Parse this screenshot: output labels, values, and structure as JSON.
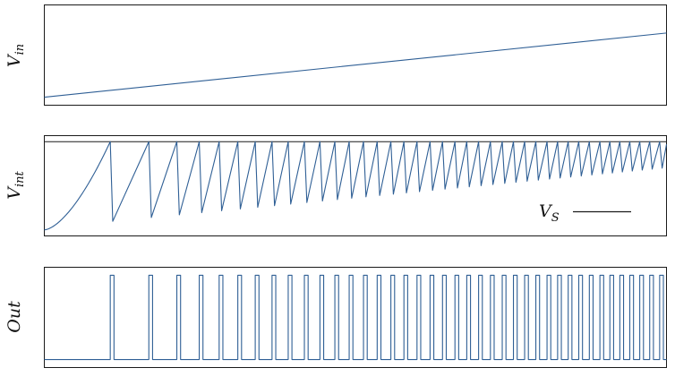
{
  "figure": {
    "colors": {
      "trace": "#2f5f95",
      "frame": "#1a1a1a",
      "reference": "#1a1a1a"
    }
  },
  "chart_data": [
    {
      "type": "line",
      "panel": "top",
      "ylabel": {
        "base": "V",
        "sub": "in"
      },
      "series": [
        {
          "x": [
            0,
            1
          ],
          "y": [
            0.08,
            0.72
          ]
        }
      ],
      "xlim": [
        0,
        1
      ],
      "ylim": [
        0,
        1
      ],
      "grid": false
    },
    {
      "type": "line",
      "panel": "middle",
      "ylabel": {
        "base": "V",
        "sub": "int"
      },
      "annotation": {
        "base": "V",
        "sub": "S"
      },
      "threshold": 0.94,
      "series": [
        {
          "shape": "sawtooth",
          "x_first_peak": 0.106,
          "reset_x": [
            0.106,
            0.168,
            0.213,
            0.249,
            0.281,
            0.311,
            0.339,
            0.366,
            0.392,
            0.418,
            0.443,
            0.467,
            0.49,
            0.513,
            0.535,
            0.557,
            0.578,
            0.599,
            0.62,
            0.64,
            0.66,
            0.679,
            0.698,
            0.717,
            0.736,
            0.754,
            0.772,
            0.79,
            0.808,
            0.825,
            0.842,
            0.859,
            0.876,
            0.893,
            0.909,
            0.925,
            0.941,
            0.957,
            0.973,
            0.989
          ],
          "trough_start": 0.08,
          "trough_end": 0.68
        }
      ],
      "xlim": [
        0,
        1
      ],
      "ylim": [
        0,
        1
      ],
      "grid": false
    },
    {
      "type": "line",
      "panel": "bottom",
      "ylabel": {
        "base": "Out",
        "sub": ""
      },
      "series": [
        {
          "shape": "pulse_train",
          "pulse_x": [
            0.106,
            0.168,
            0.213,
            0.249,
            0.281,
            0.311,
            0.339,
            0.366,
            0.392,
            0.418,
            0.443,
            0.467,
            0.49,
            0.513,
            0.535,
            0.557,
            0.578,
            0.599,
            0.62,
            0.64,
            0.66,
            0.679,
            0.698,
            0.717,
            0.736,
            0.754,
            0.772,
            0.79,
            0.808,
            0.825,
            0.842,
            0.859,
            0.876,
            0.893,
            0.909,
            0.925,
            0.941,
            0.957,
            0.973,
            0.989
          ],
          "pulse_width": 0.006,
          "low": 0.08,
          "high": 0.92
        }
      ],
      "xlim": [
        0,
        1
      ],
      "ylim": [
        0,
        1
      ],
      "grid": false
    }
  ]
}
